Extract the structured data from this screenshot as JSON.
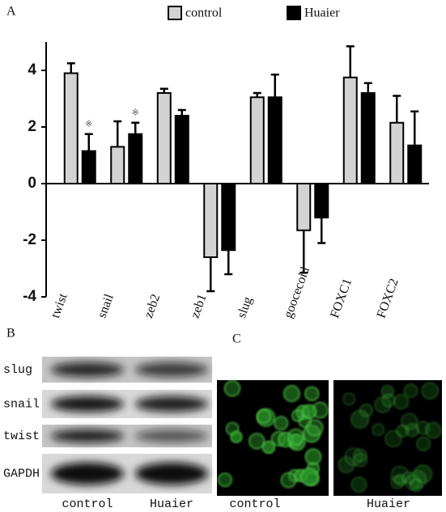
{
  "chart_data": {
    "type": "bar",
    "categories": [
      "twist",
      "snail",
      "zeb2",
      "zeb1",
      "slug",
      "goocecoid",
      "FOXC1",
      "FOXC2"
    ],
    "series": [
      {
        "name": "control",
        "color": "#d3d3d3",
        "values": [
          3.9,
          1.3,
          3.2,
          -2.6,
          3.05,
          -1.65,
          3.75,
          2.15
        ],
        "errors": [
          0.35,
          0.9,
          0.15,
          1.2,
          0.15,
          1.5,
          1.1,
          0.95
        ]
      },
      {
        "name": "Huaier",
        "color": "#000000",
        "values": [
          1.15,
          1.75,
          2.4,
          -2.35,
          3.05,
          -1.2,
          3.2,
          1.35
        ],
        "errors": [
          0.6,
          0.4,
          0.2,
          0.85,
          0.8,
          0.9,
          0.35,
          1.2
        ]
      }
    ],
    "annotations": [
      {
        "text": "※",
        "category": "twist",
        "series": "Huaier"
      },
      {
        "text": "※",
        "category": "snail",
        "series": "Huaier"
      }
    ],
    "ylim": [
      -4,
      5
    ],
    "yticks": [
      -4,
      -2,
      0,
      2,
      4
    ]
  },
  "panels": {
    "a": "A",
    "b": "B",
    "c": "C"
  },
  "blot": {
    "rows": [
      "slug",
      "snail",
      "twist",
      "GAPDH"
    ],
    "columns": [
      "control",
      "Huaier"
    ]
  },
  "immunofluorescence": {
    "columns": [
      "control",
      "Huaier"
    ]
  }
}
